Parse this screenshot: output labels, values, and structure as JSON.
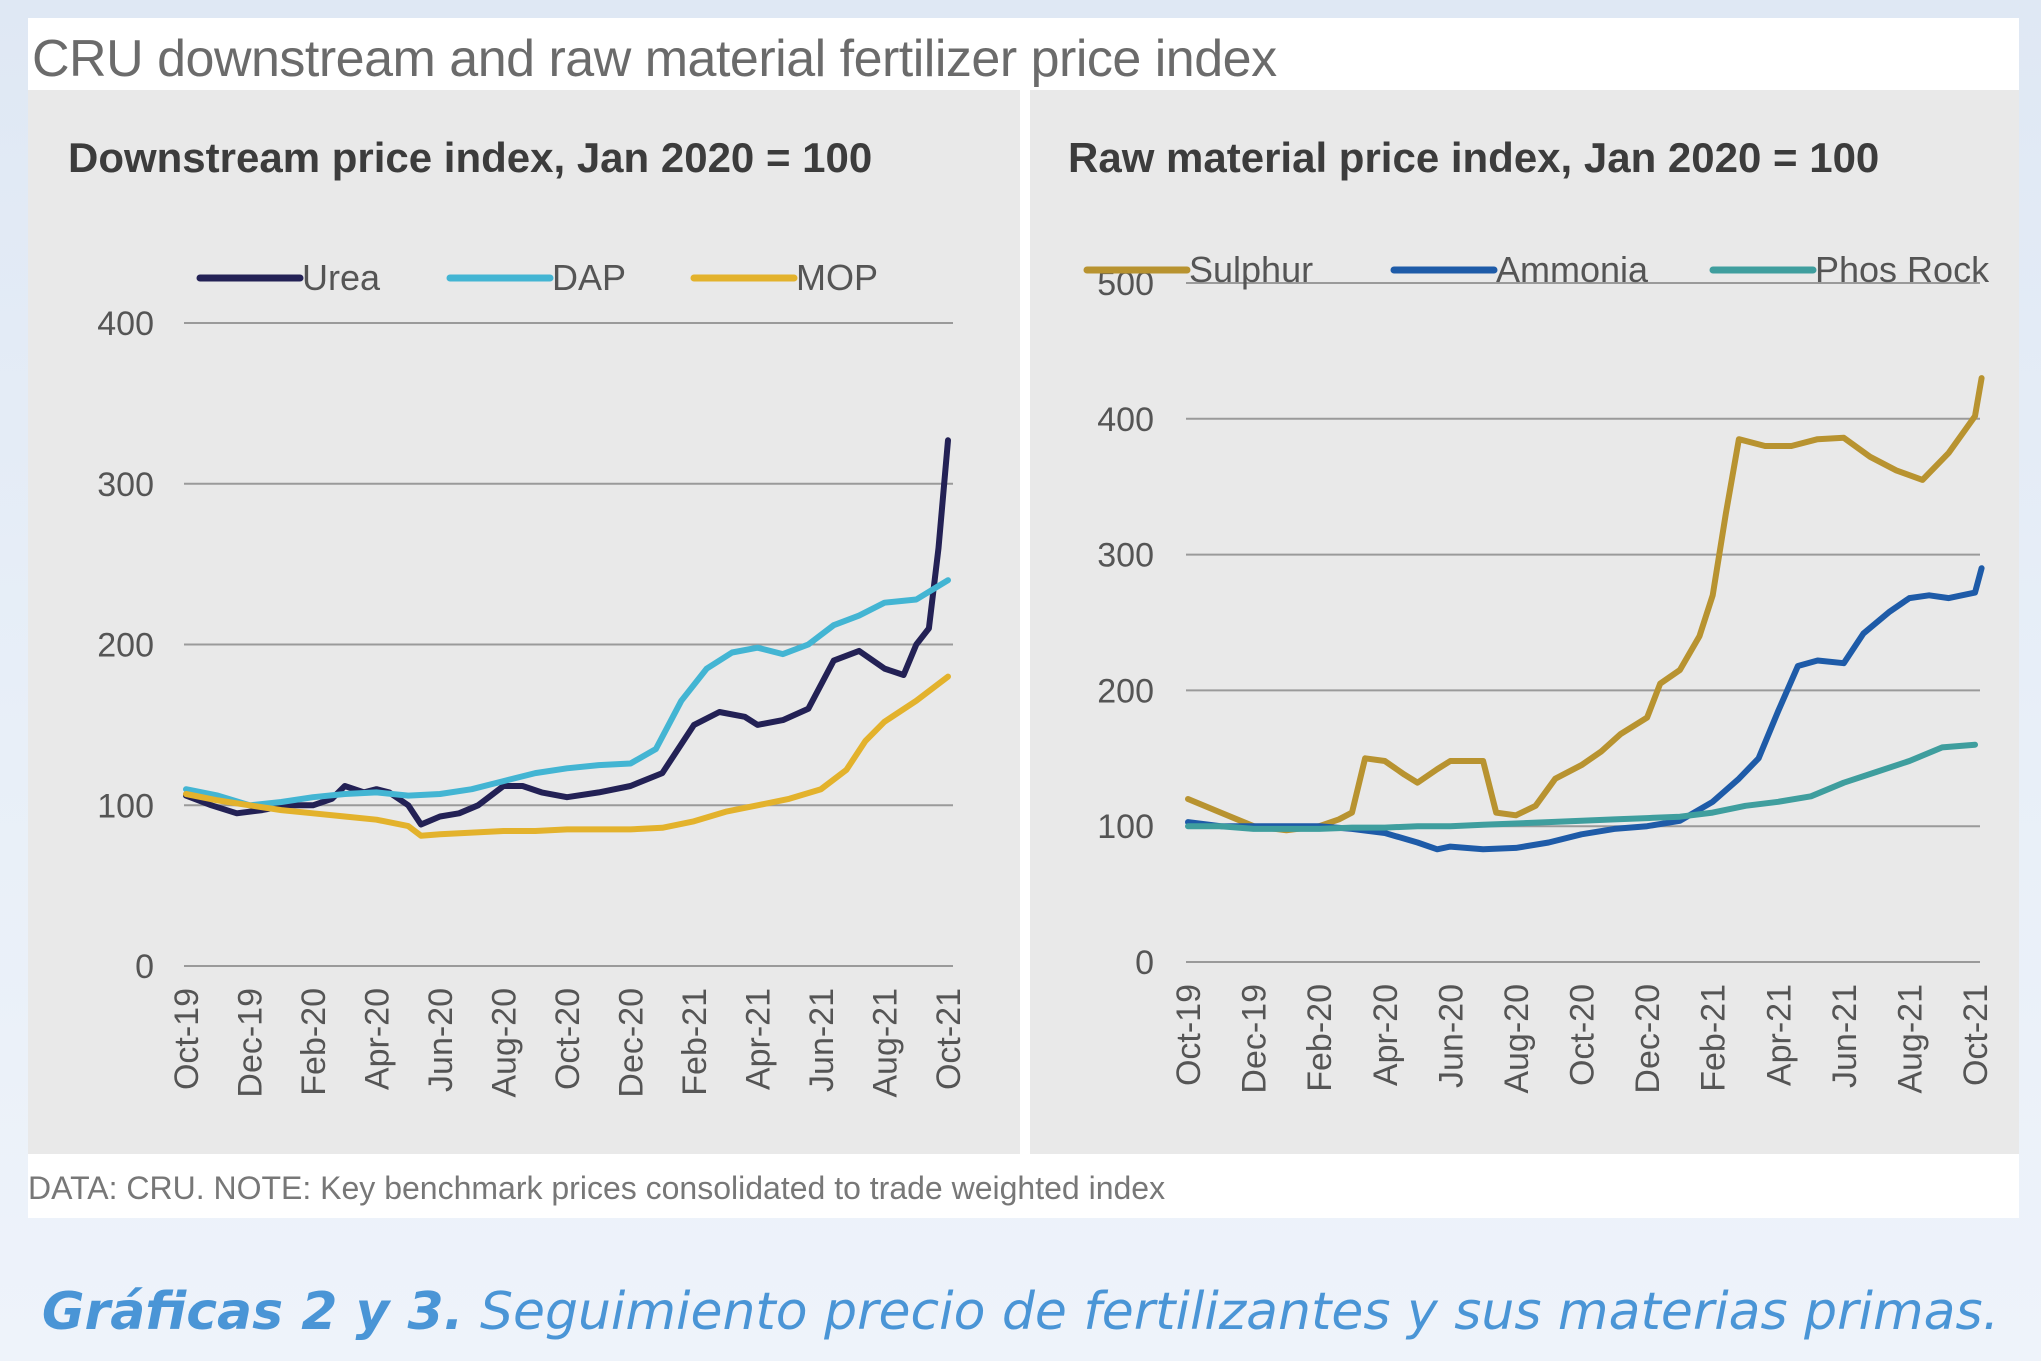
{
  "figure": {
    "title": "CRU downstream and raw material fertilizer price index",
    "note": "DATA: CRU. NOTE: Key benchmark prices consolidated to trade weighted index"
  },
  "caption": {
    "bold": "Gráficas 2 y 3.",
    "text": " Seguimiento precio de fertilizantes y sus materias primas."
  },
  "chart_data": [
    {
      "type": "line",
      "title": "Downstream price index, Jan 2020 = 100",
      "x_tick_labels": [
        "Oct-19",
        "Dec-19",
        "Feb-20",
        "Apr-20",
        "Jun-20",
        "Aug-20",
        "Oct-20",
        "Dec-20",
        "Feb-21",
        "Apr-21",
        "Jun-21",
        "Aug-21",
        "Oct-21"
      ],
      "ylim": [
        0,
        400
      ],
      "yticks": [
        0,
        100,
        200,
        300,
        400
      ],
      "grid": true,
      "legend": "top",
      "series": [
        {
          "name": "Urea",
          "color": "#232155",
          "points": [
            [
              0,
              106
            ],
            [
              0.4,
              100
            ],
            [
              0.8,
              95
            ],
            [
              1.2,
              97
            ],
            [
              1.6,
              100
            ],
            [
              2,
              100
            ],
            [
              2.3,
              104
            ],
            [
              2.5,
              112
            ],
            [
              2.8,
              108
            ],
            [
              3,
              110
            ],
            [
              3.2,
              108
            ],
            [
              3.5,
              100
            ],
            [
              3.7,
              88
            ],
            [
              4,
              93
            ],
            [
              4.3,
              95
            ],
            [
              4.6,
              100
            ],
            [
              5,
              112
            ],
            [
              5.3,
              112
            ],
            [
              5.6,
              108
            ],
            [
              6,
              105
            ],
            [
              6.5,
              108
            ],
            [
              7,
              112
            ],
            [
              7.5,
              120
            ],
            [
              8,
              150
            ],
            [
              8.4,
              158
            ],
            [
              8.8,
              155
            ],
            [
              9,
              150
            ],
            [
              9.4,
              153
            ],
            [
              9.8,
              160
            ],
            [
              10.2,
              190
            ],
            [
              10.6,
              196
            ],
            [
              11,
              185
            ],
            [
              11.3,
              181
            ],
            [
              11.5,
              200
            ],
            [
              11.7,
              210
            ],
            [
              11.85,
              260
            ],
            [
              12,
              327
            ]
          ]
        },
        {
          "name": "DAP",
          "color": "#43b5d3",
          "points": [
            [
              0,
              110
            ],
            [
              0.5,
              106
            ],
            [
              1,
              100
            ],
            [
              1.5,
              102
            ],
            [
              2,
              105
            ],
            [
              2.5,
              107
            ],
            [
              3,
              108
            ],
            [
              3.5,
              106
            ],
            [
              4,
              107
            ],
            [
              4.5,
              110
            ],
            [
              5,
              115
            ],
            [
              5.5,
              120
            ],
            [
              6,
              123
            ],
            [
              6.5,
              125
            ],
            [
              7,
              126
            ],
            [
              7.4,
              135
            ],
            [
              7.8,
              165
            ],
            [
              8.2,
              185
            ],
            [
              8.6,
              195
            ],
            [
              9,
              198
            ],
            [
              9.4,
              194
            ],
            [
              9.8,
              200
            ],
            [
              10.2,
              212
            ],
            [
              10.6,
              218
            ],
            [
              11,
              226
            ],
            [
              11.5,
              228
            ],
            [
              12,
              240
            ]
          ]
        },
        {
          "name": "MOP",
          "color": "#e3b22c",
          "points": [
            [
              0,
              107
            ],
            [
              0.5,
              103
            ],
            [
              1,
              100
            ],
            [
              1.5,
              97
            ],
            [
              2,
              95
            ],
            [
              2.5,
              93
            ],
            [
              3,
              91
            ],
            [
              3.5,
              87
            ],
            [
              3.7,
              81
            ],
            [
              4,
              82
            ],
            [
              4.5,
              83
            ],
            [
              5,
              84
            ],
            [
              5.5,
              84
            ],
            [
              6,
              85
            ],
            [
              6.5,
              85
            ],
            [
              7,
              85
            ],
            [
              7.5,
              86
            ],
            [
              8,
              90
            ],
            [
              8.5,
              96
            ],
            [
              9,
              100
            ],
            [
              9.5,
              104
            ],
            [
              10,
              110
            ],
            [
              10.4,
              122
            ],
            [
              10.7,
              140
            ],
            [
              11,
              152
            ],
            [
              11.5,
              165
            ],
            [
              12,
              180
            ]
          ]
        }
      ]
    },
    {
      "type": "line",
      "title": "Raw material price index, Jan 2020 = 100",
      "x_tick_labels": [
        "Oct-19",
        "Dec-19",
        "Feb-20",
        "Apr-20",
        "Jun-20",
        "Aug-20",
        "Oct-20",
        "Dec-20",
        "Feb-21",
        "Apr-21",
        "Jun-21",
        "Aug-21",
        "Oct-21"
      ],
      "ylim": [
        0,
        500
      ],
      "yticks": [
        0,
        100,
        200,
        300,
        400,
        500
      ],
      "grid": true,
      "legend": "top",
      "series": [
        {
          "name": "Sulphur",
          "color": "#b89330",
          "points": [
            [
              0,
              120
            ],
            [
              0.5,
              110
            ],
            [
              1,
              100
            ],
            [
              1.5,
              97
            ],
            [
              2,
              100
            ],
            [
              2.3,
              105
            ],
            [
              2.5,
              110
            ],
            [
              2.7,
              150
            ],
            [
              3,
              148
            ],
            [
              3.3,
              138
            ],
            [
              3.5,
              132
            ],
            [
              3.8,
              142
            ],
            [
              4,
              148
            ],
            [
              4.5,
              148
            ],
            [
              4.7,
              110
            ],
            [
              5,
              108
            ],
            [
              5.3,
              115
            ],
            [
              5.6,
              135
            ],
            [
              6,
              145
            ],
            [
              6.3,
              155
            ],
            [
              6.6,
              168
            ],
            [
              7,
              180
            ],
            [
              7.2,
              205
            ],
            [
              7.5,
              215
            ],
            [
              7.8,
              240
            ],
            [
              8,
              270
            ],
            [
              8.2,
              330
            ],
            [
              8.4,
              385
            ],
            [
              8.8,
              380
            ],
            [
              9.2,
              380
            ],
            [
              9.6,
              385
            ],
            [
              10,
              386
            ],
            [
              10.4,
              372
            ],
            [
              10.8,
              362
            ],
            [
              11.2,
              355
            ],
            [
              11.6,
              375
            ],
            [
              12,
              402
            ],
            [
              12.1,
              430
            ]
          ]
        },
        {
          "name": "Ammonia",
          "color": "#1e5ba8",
          "points": [
            [
              0,
              103
            ],
            [
              0.5,
              100
            ],
            [
              1,
              100
            ],
            [
              1.5,
              100
            ],
            [
              2,
              100
            ],
            [
              2.5,
              98
            ],
            [
              3,
              95
            ],
            [
              3.5,
              88
            ],
            [
              3.8,
              83
            ],
            [
              4,
              85
            ],
            [
              4.5,
              83
            ],
            [
              5,
              84
            ],
            [
              5.5,
              88
            ],
            [
              6,
              94
            ],
            [
              6.5,
              98
            ],
            [
              7,
              100
            ],
            [
              7.5,
              104
            ],
            [
              8,
              118
            ],
            [
              8.4,
              135
            ],
            [
              8.7,
              150
            ],
            [
              9,
              185
            ],
            [
              9.3,
              218
            ],
            [
              9.6,
              222
            ],
            [
              10,
              220
            ],
            [
              10.3,
              242
            ],
            [
              10.7,
              258
            ],
            [
              11,
              268
            ],
            [
              11.3,
              270
            ],
            [
              11.6,
              268
            ],
            [
              12,
              272
            ],
            [
              12.1,
              290
            ]
          ]
        },
        {
          "name": "Phos Rock",
          "color": "#3f9e9e",
          "points": [
            [
              0,
              100
            ],
            [
              0.5,
              100
            ],
            [
              1,
              98
            ],
            [
              1.5,
              98
            ],
            [
              2,
              98
            ],
            [
              2.5,
              99
            ],
            [
              3,
              99
            ],
            [
              3.5,
              100
            ],
            [
              4,
              100
            ],
            [
              4.5,
              101
            ],
            [
              5,
              102
            ],
            [
              5.5,
              103
            ],
            [
              6,
              104
            ],
            [
              6.5,
              105
            ],
            [
              7,
              106
            ],
            [
              7.5,
              107
            ],
            [
              8,
              110
            ],
            [
              8.5,
              115
            ],
            [
              9,
              118
            ],
            [
              9.5,
              122
            ],
            [
              10,
              132
            ],
            [
              10.5,
              140
            ],
            [
              11,
              148
            ],
            [
              11.5,
              158
            ],
            [
              12,
              160
            ]
          ]
        }
      ]
    }
  ]
}
